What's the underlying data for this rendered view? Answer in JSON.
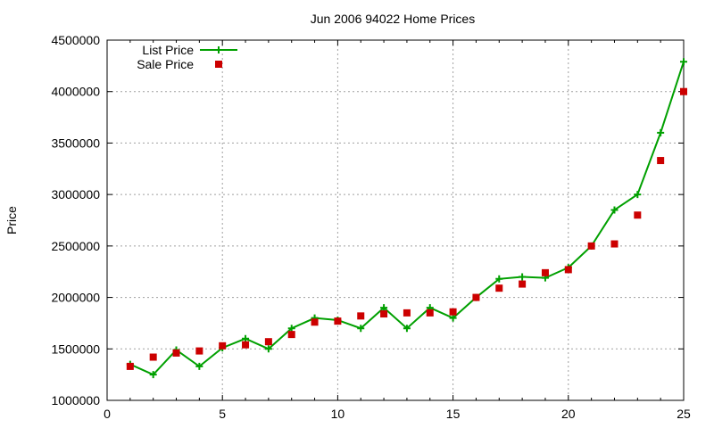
{
  "chart_data": {
    "type": "line",
    "title": "Jun 2006 94022 Home Prices",
    "xlabel": "",
    "ylabel": "Price",
    "xlim": [
      0,
      25
    ],
    "ylim": [
      1000000,
      4500000
    ],
    "x_ticks": [
      0,
      5,
      10,
      15,
      20,
      25
    ],
    "y_ticks": [
      1000000,
      1500000,
      2000000,
      2500000,
      3000000,
      3500000,
      4000000,
      4500000
    ],
    "x_tick_labels": [
      "0",
      "5",
      "10",
      "15",
      "20",
      "25"
    ],
    "y_tick_labels": [
      "1000000",
      "1500000",
      "2000000",
      "2500000",
      "3000000",
      "3500000",
      "4000000",
      "4500000"
    ],
    "grid": true,
    "legend_position": "top-left",
    "series": [
      {
        "name": "List Price",
        "style": "line+cross",
        "color": "#00a000",
        "x": [
          1,
          2,
          3,
          4,
          5,
          6,
          7,
          8,
          9,
          10,
          11,
          12,
          13,
          14,
          15,
          16,
          17,
          18,
          19,
          20,
          21,
          22,
          23,
          24,
          25
        ],
        "values": [
          1350000,
          1250000,
          1490000,
          1330000,
          1510000,
          1600000,
          1500000,
          1700000,
          1800000,
          1780000,
          1700000,
          1900000,
          1700000,
          1900000,
          1800000,
          2000000,
          2180000,
          2200000,
          2190000,
          2290000,
          2500000,
          2850000,
          3000000,
          3600000,
          4290000
        ]
      },
      {
        "name": "Sale Price",
        "style": "square",
        "color": "#cc0000",
        "x": [
          1,
          2,
          3,
          4,
          5,
          6,
          7,
          8,
          9,
          10,
          11,
          12,
          13,
          14,
          15,
          16,
          17,
          18,
          19,
          20,
          21,
          22,
          23,
          24,
          25
        ],
        "values": [
          1330000,
          1420000,
          1460000,
          1480000,
          1530000,
          1540000,
          1570000,
          1640000,
          1760000,
          1770000,
          1820000,
          1840000,
          1850000,
          1850000,
          1860000,
          2000000,
          2090000,
          2130000,
          2240000,
          2270000,
          2500000,
          2520000,
          2800000,
          3330000,
          4000000
        ]
      }
    ]
  }
}
